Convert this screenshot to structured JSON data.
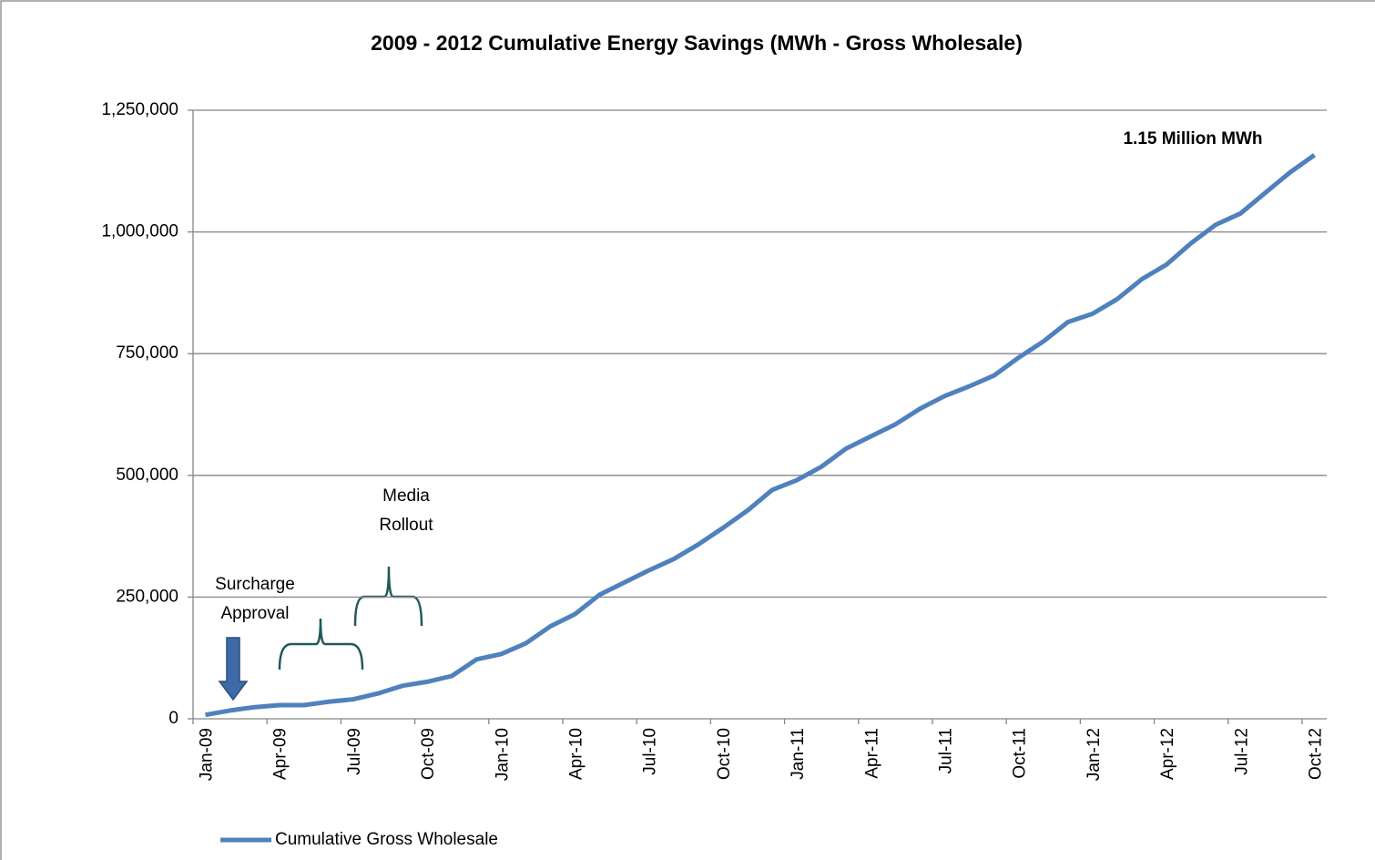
{
  "chart_data": {
    "type": "line",
    "title": "2009 - 2012 Cumulative Energy Savings (MWh - Gross  Wholesale)",
    "categories": [
      "Jan-09",
      null,
      null,
      "Apr-09",
      null,
      null,
      "Jul-09",
      null,
      null,
      "Oct-09",
      null,
      null,
      "Jan-10",
      null,
      null,
      "Apr-10",
      null,
      null,
      "Jul-10",
      null,
      null,
      "Oct-10",
      null,
      null,
      "Jan-11",
      null,
      null,
      "Apr-11",
      null,
      null,
      "Jul-11",
      null,
      null,
      "Oct-11",
      null,
      null,
      "Jan-12",
      null,
      null,
      "Apr-12",
      null,
      null,
      "Jul-12",
      null,
      null,
      "Oct-12"
    ],
    "series": [
      {
        "name": "Cumulative Gross Wholesale",
        "color": "#4f81bd",
        "values": [
          8000,
          17000,
          24000,
          28000,
          28000,
          35000,
          40000,
          52000,
          68000,
          76000,
          88000,
          122000,
          133000,
          155000,
          190000,
          215000,
          255000,
          280000,
          305000,
          328000,
          358000,
          392000,
          428000,
          470000,
          490000,
          518000,
          555000,
          580000,
          605000,
          637000,
          663000,
          683000,
          705000,
          742000,
          775000,
          815000,
          832000,
          862000,
          903000,
          933000,
          977000,
          1015000,
          1038000,
          1080000,
          1122000,
          1158000
        ]
      }
    ],
    "ylim": [
      0,
      1250000
    ],
    "yticks": [
      0,
      {
        "value": 250000,
        "label": "250,000"
      },
      {
        "value": 500000,
        "label": "500,000"
      },
      {
        "value": 750000,
        "label": "750,000"
      },
      {
        "value": 1000000,
        "label": "1,000,000"
      },
      {
        "value": 1250000,
        "label": "1,250,000"
      }
    ],
    "grid": true,
    "legend": "bottom-left",
    "annotations": [
      {
        "lines": [
          "1.15 Million MWh"
        ]
      },
      {
        "lines": [
          "Surcharge",
          "Approval"
        ]
      },
      {
        "lines": [
          "Media",
          "Rollout"
        ]
      }
    ]
  }
}
